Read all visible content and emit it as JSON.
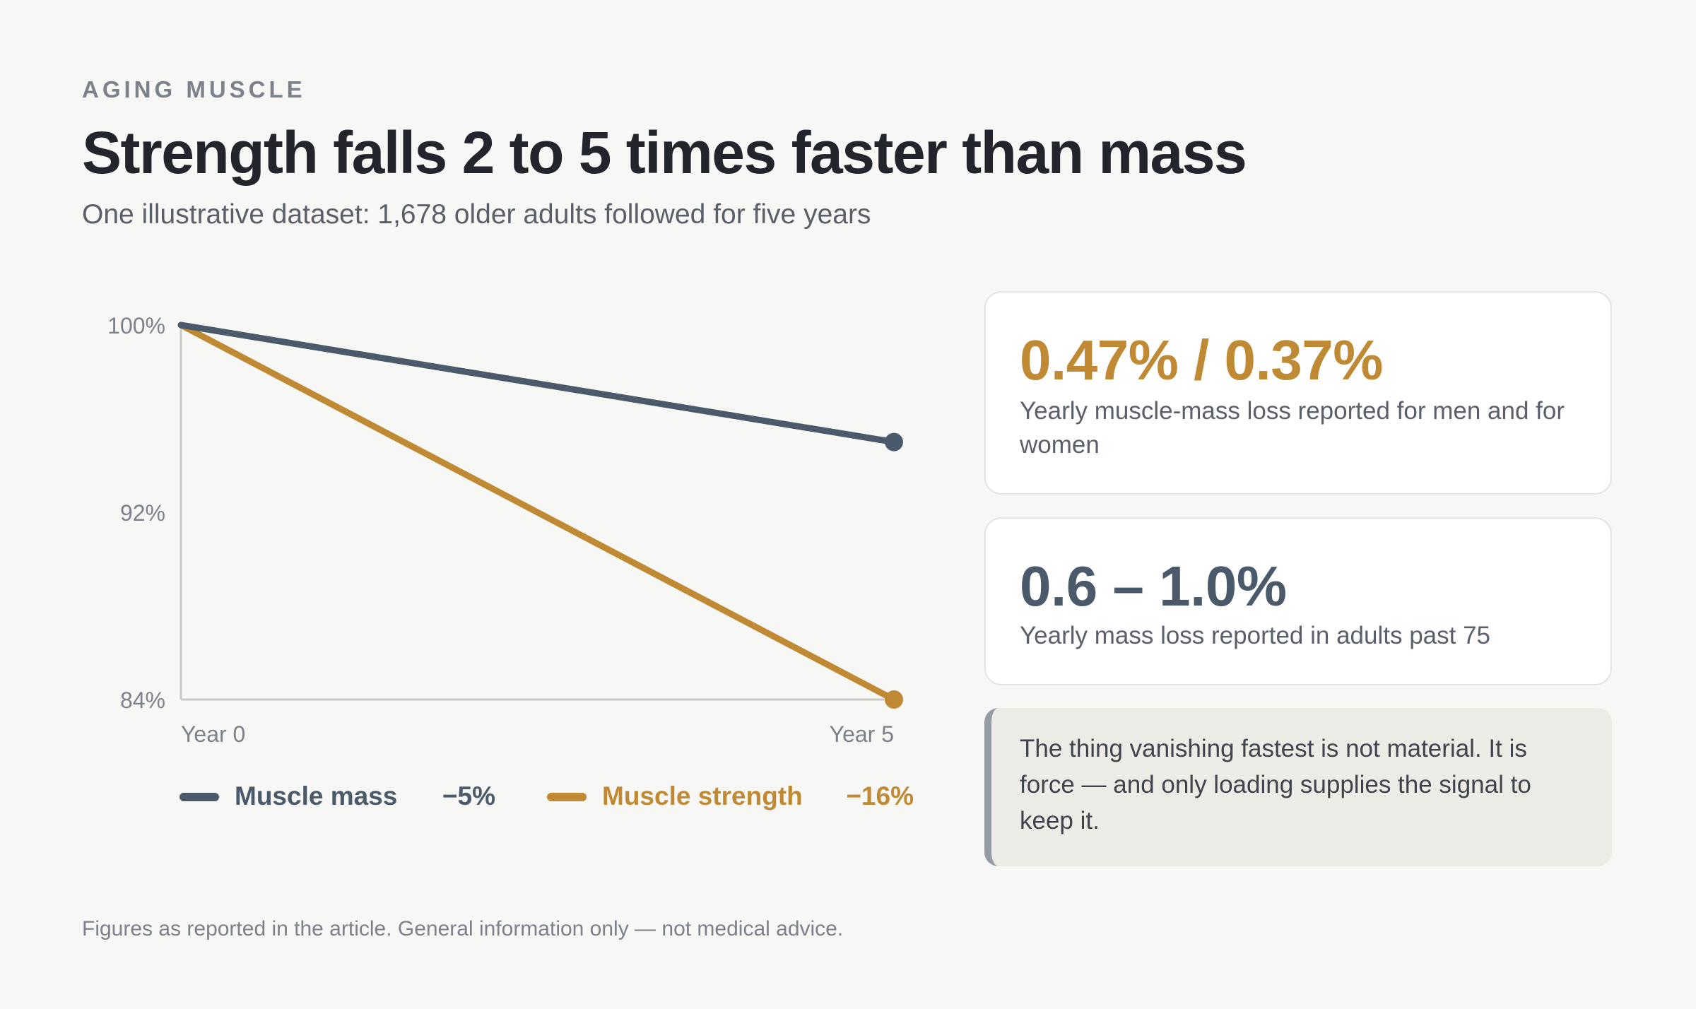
{
  "header": {
    "eyebrow": "AGING MUSCLE",
    "title": "Strength falls 2 to 5 times faster than mass",
    "subtitle": "One illustrative dataset: 1,678 older adults followed for five years"
  },
  "chart_data": {
    "type": "line",
    "x": [
      "Year 0",
      "Year 5"
    ],
    "yticks": [
      "100%",
      "92%",
      "84%"
    ],
    "ylim": [
      84,
      100
    ],
    "series": [
      {
        "name": "Muscle mass",
        "values": [
          100,
          95
        ],
        "change": "−5%",
        "color": "#4b5a6a"
      },
      {
        "name": "Muscle strength",
        "values": [
          100,
          84
        ],
        "change": "−16%",
        "color": "#bf8a33"
      }
    ]
  },
  "cards": [
    {
      "value": "0.47% / 0.37%",
      "description": "Yearly muscle-mass loss reported for men and for women",
      "color": "#bf8a33"
    },
    {
      "value": "0.6 – 1.0%",
      "description": "Yearly mass loss reported in adults past 75",
      "color": "#4b5a6a"
    }
  ],
  "callout": "The thing vanishing fastest is not material. It is force — and only loading supplies the signal to keep it.",
  "footnote": "Figures as reported in the article. General information only — not medical advice."
}
